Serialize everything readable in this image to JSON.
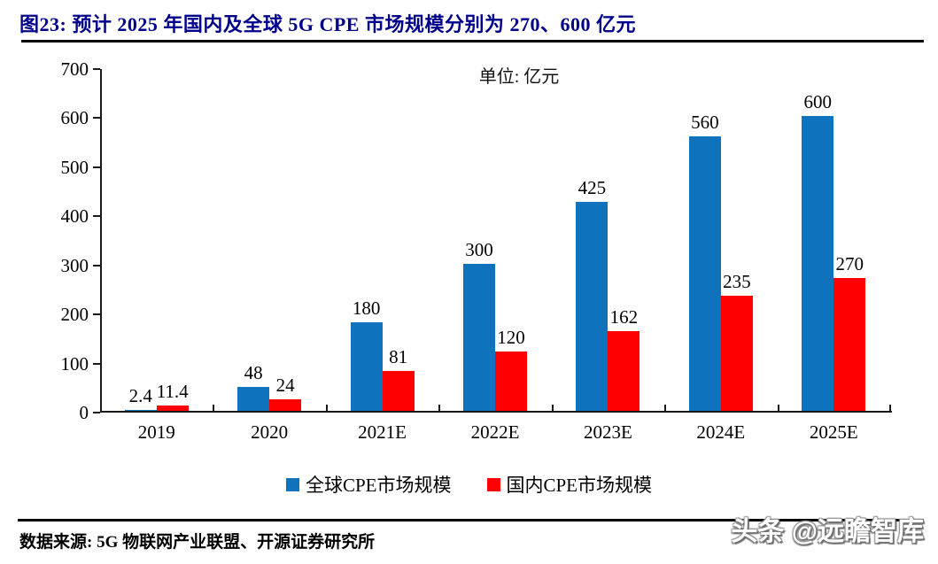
{
  "title": {
    "text": "图23:  预计 2025 年国内及全球 5G CPE 市场规模分别为 270、600 亿元"
  },
  "chart_data": {
    "type": "bar",
    "unit_label": "单位: 亿元",
    "categories": [
      "2019",
      "2020",
      "2021E",
      "2022E",
      "2023E",
      "2024E",
      "2025E"
    ],
    "series": [
      {
        "name": "全球CPE市场规模",
        "color": "#0E72BC",
        "values": [
          2.4,
          48,
          180,
          300,
          425,
          560,
          600
        ]
      },
      {
        "name": "国内CPE市场规模",
        "color": "#FE0000",
        "values": [
          11.4,
          24,
          81,
          120,
          162,
          235,
          270
        ]
      }
    ],
    "ylim": [
      0,
      700
    ],
    "ytick_interval": 100,
    "grid": false,
    "legend_position": "bottom",
    "value_labels_shown": true
  },
  "footer": {
    "source": "数据来源: 5G 物联网产业联盟、开源证券研究所",
    "watermark": "头条 @远瞻智库"
  },
  "colors": {
    "title_text": "#00008B",
    "axis": "#1a1a1a",
    "rules": "#000000",
    "series_global": "#0E72BC",
    "series_domestic": "#FE0000"
  }
}
